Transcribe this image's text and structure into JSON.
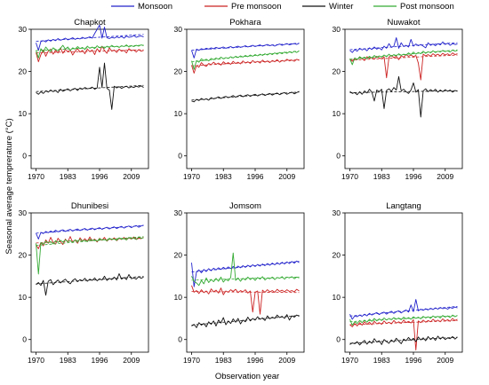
{
  "chart_data": {
    "type": "line",
    "ylabel": "Seasonal average temprerature (°C)",
    "xlabel": "Observation year",
    "x_ticks": [
      1970,
      1983,
      1996,
      2009
    ],
    "y_ticks": [
      0,
      10,
      20,
      30
    ],
    "ylim": [
      -3,
      30
    ],
    "xlim": [
      1968,
      2016
    ],
    "legend_position": "top",
    "series_meta": [
      {
        "key": "monsoon",
        "name": "Monsoon",
        "color": "#2222cc"
      },
      {
        "key": "pre",
        "name": "Pre monsoon",
        "color": "#cc2222"
      },
      {
        "key": "winter",
        "name": "Winter",
        "color": "#111111"
      },
      {
        "key": "post",
        "name": "Post monsoon",
        "color": "#33aa33"
      }
    ],
    "panels": [
      {
        "title": "Chapkot",
        "years": [
          1970,
          2014
        ],
        "monsoon": [
          26.8,
          25.0,
          27.1,
          27.3,
          27.0,
          27.5,
          27.2,
          27.6,
          27.3,
          27.8,
          27.4,
          27.6,
          27.9,
          27.5,
          27.7,
          28.0,
          27.6,
          27.9,
          27.7,
          28.1,
          27.8,
          28.0,
          28.2,
          27.9,
          29.0,
          30.0,
          31.0,
          27.9,
          30.5,
          28.0,
          27.8,
          28.1,
          27.9,
          28.2,
          28.0,
          28.3,
          27.9,
          28.4,
          28.1,
          28.2,
          28.5,
          28.1,
          28.3,
          28.4,
          28.2
        ],
        "pre": [
          24.5,
          22.3,
          24.0,
          25.1,
          23.6,
          24.8,
          25.3,
          24.1,
          25.0,
          24.4,
          25.6,
          24.3,
          25.2,
          24.7,
          25.1,
          23.9,
          24.8,
          25.4,
          24.6,
          25.0,
          24.2,
          25.3,
          24.7,
          25.1,
          24.0,
          25.4,
          24.6,
          26.0,
          25.0,
          24.3,
          25.6,
          24.8,
          25.1,
          24.5,
          25.3,
          24.8,
          25.0,
          24.4,
          25.4,
          24.9,
          25.1,
          24.6,
          25.2,
          24.8,
          25.0
        ],
        "winter": [
          15.0,
          14.6,
          15.2,
          14.8,
          15.4,
          15.1,
          15.6,
          15.2,
          15.5,
          15.0,
          15.8,
          15.3,
          15.6,
          15.9,
          15.4,
          15.8,
          16.0,
          15.5,
          16.1,
          15.8,
          16.2,
          15.9,
          16.0,
          16.3,
          15.8,
          16.1,
          21.0,
          16.2,
          22.0,
          16.0,
          15.6,
          11.0,
          16.5,
          16.1,
          16.4,
          16.0,
          16.3,
          16.5,
          16.1,
          16.4,
          16.2,
          16.5,
          16.3,
          16.6,
          16.2
        ],
        "post": [
          25.0,
          23.2,
          25.4,
          24.6,
          25.8,
          25.1,
          24.7,
          25.6,
          25.2,
          24.9,
          25.5,
          26.2,
          25.3,
          25.8,
          25.0,
          25.6,
          25.3,
          25.9,
          25.4,
          25.7,
          25.2,
          26.0,
          25.5,
          25.8,
          25.4,
          26.1,
          25.6,
          25.9,
          25.5,
          26.0,
          25.7,
          26.2,
          25.8,
          26.0,
          25.7,
          26.1,
          25.9,
          26.3,
          25.8,
          26.1,
          25.9,
          26.2,
          26.0,
          26.3,
          26.1
        ]
      },
      {
        "title": "Pokhara",
        "years": [
          1970,
          2014
        ],
        "monsoon": [
          25.0,
          23.2,
          25.3,
          25.0,
          25.4,
          25.2,
          25.5,
          25.3,
          25.6,
          25.4,
          25.7,
          25.5,
          25.6,
          25.8,
          25.5,
          25.7,
          25.9,
          25.6,
          25.8,
          26.0,
          25.7,
          25.9,
          26.1,
          25.8,
          26.0,
          26.2,
          25.9,
          26.1,
          26.3,
          26.0,
          26.2,
          26.4,
          26.1,
          26.3,
          26.0,
          26.3,
          26.5,
          26.2,
          26.4,
          26.6,
          26.3,
          26.5,
          26.6,
          26.4,
          26.7
        ],
        "pre": [
          21.5,
          19.6,
          21.4,
          21.0,
          22.1,
          21.5,
          21.2,
          21.9,
          21.6,
          22.2,
          21.7,
          22.0,
          21.5,
          22.3,
          21.8,
          22.1,
          21.7,
          22.4,
          21.9,
          22.2,
          21.8,
          22.5,
          22.0,
          22.3,
          21.9,
          22.6,
          22.1,
          22.4,
          22.0,
          22.7,
          22.2,
          22.5,
          22.1,
          22.6,
          22.3,
          22.8,
          22.2,
          22.6,
          22.4,
          22.9,
          22.5,
          22.7,
          22.4,
          22.9,
          22.6
        ],
        "winter": [
          13.0,
          12.8,
          13.4,
          13.1,
          13.6,
          13.3,
          13.5,
          13.2,
          13.8,
          13.5,
          13.7,
          14.0,
          13.6,
          13.9,
          14.1,
          13.8,
          14.0,
          14.3,
          13.9,
          14.2,
          14.4,
          14.0,
          14.3,
          14.5,
          14.1,
          14.4,
          14.6,
          14.2,
          14.5,
          14.7,
          14.3,
          14.6,
          14.8,
          14.4,
          14.7,
          14.9,
          14.5,
          14.8,
          15.0,
          14.6,
          14.9,
          15.1,
          14.7,
          15.0,
          15.3
        ],
        "post": [
          22.5,
          20.5,
          22.6,
          22.2,
          23.0,
          22.6,
          22.9,
          22.5,
          23.1,
          22.8,
          23.2,
          22.9,
          23.4,
          23.0,
          23.3,
          23.1,
          23.5,
          23.2,
          23.6,
          23.3,
          23.7,
          23.4,
          23.8,
          23.5,
          23.9,
          23.6,
          24.0,
          23.7,
          24.1,
          23.8,
          24.2,
          23.9,
          24.3,
          24.0,
          24.4,
          24.1,
          24.5,
          24.2,
          24.6,
          24.3,
          24.7,
          24.4,
          24.8,
          24.5,
          24.9
        ]
      },
      {
        "title": "Nuwakot",
        "years": [
          1970,
          2014
        ],
        "monsoon": [
          25.0,
          24.5,
          25.2,
          24.8,
          25.5,
          25.1,
          25.4,
          24.9,
          25.6,
          25.2,
          25.8,
          25.3,
          25.6,
          25.1,
          26.0,
          25.5,
          26.6,
          25.7,
          26.0,
          28.0,
          25.5,
          26.8,
          25.9,
          26.2,
          25.8,
          27.6,
          26.0,
          26.5,
          26.1,
          26.4,
          26.0,
          25.6,
          26.8,
          26.2,
          26.5,
          26.1,
          26.6,
          26.3,
          27.0,
          26.4,
          26.7,
          26.2,
          26.6,
          26.4,
          26.5
        ],
        "pre": [
          23.0,
          22.4,
          23.2,
          22.8,
          23.4,
          23.0,
          22.6,
          23.5,
          23.1,
          23.3,
          22.9,
          23.6,
          23.2,
          23.0,
          23.5,
          18.5,
          23.4,
          23.8,
          23.3,
          23.6,
          22.8,
          23.7,
          23.4,
          24.0,
          23.6,
          23.9,
          23.5,
          23.8,
          22.0,
          18.0,
          24.1,
          23.7,
          24.0,
          23.6,
          24.2,
          23.8,
          24.1,
          23.7,
          24.3,
          23.9,
          24.2,
          23.8,
          24.4,
          24.0,
          24.2
        ],
        "winter": [
          15.3,
          14.8,
          15.0,
          14.5,
          15.2,
          14.6,
          15.4,
          14.9,
          15.8,
          15.1,
          13.0,
          15.6,
          15.2,
          15.8,
          11.2,
          15.5,
          15.9,
          15.3,
          16.2,
          15.6,
          18.8,
          15.4,
          15.8,
          15.2,
          14.8,
          15.6,
          17.3,
          15.1,
          15.7,
          9.2,
          15.4,
          15.9,
          15.2,
          15.7,
          15.3,
          15.8,
          15.1,
          15.6,
          15.2,
          15.7,
          15.3,
          15.6,
          15.1,
          15.5,
          15.3
        ],
        "post": [
          23.0,
          21.6,
          23.2,
          22.8,
          23.5,
          23.1,
          23.4,
          23.0,
          23.6,
          23.2,
          23.8,
          23.3,
          23.7,
          23.4,
          23.9,
          23.5,
          24.1,
          23.6,
          24.0,
          23.7,
          24.2,
          23.8,
          24.1,
          23.9,
          24.4,
          24.0,
          24.6,
          24.1,
          24.5,
          24.2,
          24.8,
          24.3,
          24.7,
          24.4,
          24.9,
          24.5,
          24.8,
          24.6,
          25.0,
          24.7,
          24.9,
          24.6,
          25.1,
          24.8,
          25.0
        ]
      },
      {
        "title": "Dhunibesi",
        "years": [
          1970,
          2014
        ],
        "monsoon": [
          25.2,
          23.8,
          25.4,
          25.1,
          25.6,
          25.3,
          25.7,
          25.4,
          25.9,
          25.5,
          25.8,
          26.0,
          25.6,
          25.9,
          26.1,
          25.7,
          26.0,
          26.2,
          25.8,
          26.1,
          26.3,
          25.9,
          26.2,
          26.4,
          26.0,
          26.3,
          26.5,
          26.1,
          26.4,
          26.6,
          26.2,
          26.5,
          26.7,
          26.3,
          26.6,
          26.8,
          26.4,
          26.7,
          26.9,
          26.5,
          26.8,
          27.0,
          26.6,
          26.9,
          27.1
        ],
        "pre": [
          22.5,
          21.5,
          23.0,
          22.2,
          23.6,
          22.8,
          24.2,
          23.0,
          22.6,
          24.0,
          23.2,
          22.5,
          23.8,
          23.1,
          24.4,
          23.0,
          23.6,
          22.8,
          24.1,
          23.3,
          23.9,
          23.2,
          24.3,
          23.4,
          23.8,
          23.1,
          24.0,
          23.5,
          24.2,
          23.3,
          23.9,
          23.6,
          24.1,
          23.4,
          24.0,
          23.7,
          24.2,
          23.6,
          24.1,
          23.8,
          24.3,
          23.7,
          24.0,
          23.9,
          24.2
        ],
        "winter": [
          13.0,
          13.5,
          12.8,
          14.0,
          10.5,
          13.8,
          14.2,
          13.0,
          13.6,
          14.1,
          13.4,
          13.9,
          14.3,
          13.6,
          13.2,
          14.0,
          14.4,
          13.7,
          14.2,
          13.9,
          14.5,
          13.8,
          14.3,
          14.0,
          14.6,
          13.9,
          14.4,
          14.1,
          15.0,
          14.0,
          14.5,
          14.2,
          14.8,
          14.1,
          15.6,
          14.3,
          14.7,
          14.2,
          15.4,
          14.4,
          14.6,
          14.3,
          14.9,
          14.5,
          14.8
        ],
        "post": [
          22.8,
          15.5,
          23.0,
          22.6,
          23.3,
          22.9,
          23.2,
          22.7,
          23.4,
          23.0,
          23.5,
          23.1,
          23.6,
          23.2,
          23.4,
          23.0,
          23.6,
          23.3,
          23.7,
          23.4,
          23.5,
          23.2,
          23.8,
          23.5,
          23.6,
          23.3,
          23.9,
          23.6,
          23.7,
          23.4,
          24.0,
          23.7,
          23.8,
          23.5,
          24.1,
          23.8,
          23.9,
          23.6,
          24.2,
          23.9,
          24.0,
          23.7,
          24.3,
          24.0,
          24.1
        ]
      },
      {
        "title": "Jomsom",
        "years": [
          1970,
          2014
        ],
        "monsoon": [
          18.2,
          12.5,
          16.0,
          16.5,
          15.8,
          16.6,
          16.1,
          16.8,
          16.3,
          16.9,
          16.5,
          17.0,
          16.6,
          17.1,
          16.7,
          17.2,
          16.8,
          17.3,
          16.9,
          17.4,
          17.0,
          17.5,
          17.1,
          17.6,
          17.2,
          17.7,
          17.3,
          17.8,
          17.4,
          17.9,
          17.5,
          18.0,
          17.6,
          18.1,
          17.7,
          18.2,
          17.8,
          18.3,
          17.9,
          18.4,
          18.0,
          18.5,
          18.1,
          18.6,
          18.2
        ],
        "pre": [
          12.8,
          11.2,
          11.6,
          10.9,
          11.8,
          11.1,
          11.5,
          10.8,
          12.0,
          11.3,
          11.7,
          11.0,
          12.2,
          10.6,
          11.5,
          11.2,
          11.8,
          11.4,
          11.9,
          11.1,
          11.6,
          11.3,
          11.8,
          11.0,
          11.5,
          6.5,
          11.2,
          11.5,
          6.0,
          11.7,
          11.2,
          11.8,
          11.3,
          11.6,
          11.2,
          11.9,
          11.4,
          11.7,
          11.3,
          11.8,
          11.4,
          11.6,
          11.3,
          11.9,
          11.5
        ],
        "winter": [
          3.2,
          3.6,
          2.8,
          4.0,
          3.4,
          3.8,
          3.0,
          4.2,
          3.6,
          4.4,
          3.2,
          4.6,
          3.9,
          5.2,
          3.5,
          4.4,
          3.8,
          4.9,
          4.1,
          5.0,
          3.7,
          4.6,
          4.2,
          5.3,
          4.4,
          5.0,
          4.6,
          5.4,
          4.8,
          5.1,
          4.5,
          5.6,
          4.9,
          5.3,
          5.0,
          5.8,
          5.2,
          5.5,
          5.0,
          5.9,
          4.6,
          5.6,
          5.3,
          5.8,
          5.5
        ],
        "post": [
          15.0,
          13.8,
          13.4,
          12.8,
          14.0,
          13.2,
          14.6,
          13.5,
          14.2,
          13.7,
          14.5,
          13.8,
          14.8,
          13.6,
          14.3,
          13.9,
          14.7,
          20.5,
          14.0,
          14.6,
          13.8,
          14.5,
          14.1,
          14.8,
          14.2,
          14.6,
          14.0,
          14.7,
          14.3,
          14.9,
          14.1,
          14.6,
          14.4,
          14.8,
          14.2,
          14.7,
          14.5,
          14.9,
          14.3,
          14.8,
          14.6,
          14.9,
          14.4,
          14.8,
          14.6
        ]
      },
      {
        "title": "Langtang",
        "years": [
          1970,
          2014
        ],
        "monsoon": [
          6.0,
          4.8,
          5.6,
          5.4,
          5.8,
          5.5,
          6.0,
          5.6,
          6.2,
          5.8,
          6.1,
          6.4,
          5.9,
          6.3,
          6.5,
          6.0,
          6.4,
          6.7,
          6.2,
          6.6,
          6.8,
          6.3,
          6.7,
          7.0,
          6.5,
          8.2,
          6.6,
          9.5,
          6.8,
          7.2,
          6.9,
          7.3,
          7.0,
          7.4,
          7.1,
          7.5,
          7.2,
          7.6,
          7.3,
          7.5,
          7.2,
          7.6,
          7.4,
          7.7,
          7.5
        ],
        "pre": [
          3.5,
          3.0,
          3.8,
          3.2,
          4.0,
          3.4,
          4.2,
          3.6,
          4.1,
          3.5,
          4.3,
          3.7,
          4.0,
          3.6,
          4.4,
          3.8,
          4.1,
          3.7,
          4.5,
          3.9,
          4.2,
          3.8,
          4.6,
          4.0,
          4.3,
          3.9,
          4.7,
          -2.5,
          4.4,
          4.0,
          4.6,
          4.1,
          4.5,
          4.2,
          4.8,
          4.3,
          4.6,
          4.2,
          4.9,
          4.4,
          4.7,
          4.3,
          5.0,
          4.5,
          4.8
        ],
        "winter": [
          -1.2,
          -0.8,
          -1.0,
          -0.5,
          -1.3,
          -0.7,
          -0.2,
          -1.1,
          -0.4,
          -0.9,
          0.2,
          -0.6,
          -0.3,
          -1.2,
          0.0,
          -0.5,
          -0.9,
          -0.1,
          -0.6,
          0.3,
          -0.4,
          -1.0,
          0.1,
          -0.3,
          0.5,
          -0.2,
          0.3,
          -0.5,
          0.6,
          -0.1,
          0.4,
          -0.3,
          0.7,
          0.0,
          0.5,
          -0.2,
          0.8,
          0.1,
          0.6,
          0.0,
          0.4,
          0.2,
          0.7,
          0.1,
          0.6
        ],
        "post": [
          4.8,
          3.4,
          4.2,
          3.8,
          4.5,
          4.0,
          4.6,
          4.1,
          4.8,
          4.3,
          5.0,
          4.4,
          4.9,
          4.5,
          5.1,
          4.6,
          5.0,
          4.7,
          5.2,
          4.8,
          5.1,
          4.7,
          5.3,
          4.9,
          5.2,
          4.8,
          5.4,
          5.0,
          5.3,
          4.9,
          5.5,
          5.1,
          5.4,
          5.0,
          5.6,
          5.2,
          5.5,
          5.1,
          5.7,
          5.3,
          5.6,
          5.2,
          5.8,
          5.4,
          5.7
        ]
      }
    ]
  }
}
